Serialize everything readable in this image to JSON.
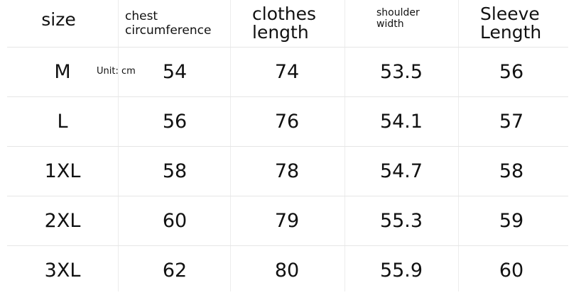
{
  "headers": {
    "size": "size",
    "chest": [
      "chest",
      "circumference"
    ],
    "clothes": [
      "clothes",
      "length"
    ],
    "shoulder": [
      "shoulder",
      "width"
    ],
    "sleeve": [
      "Sleeve",
      "Length"
    ]
  },
  "unit": "Unit: cm",
  "rows": [
    {
      "size": "M",
      "chest": "54",
      "length": "74",
      "shoulder": "53.5",
      "sleeve": "56"
    },
    {
      "size": "L",
      "chest": "56",
      "length": "76",
      "shoulder": "54.1",
      "sleeve": "57"
    },
    {
      "size": "1XL",
      "chest": "58",
      "length": "78",
      "shoulder": "54.7",
      "sleeve": "58"
    },
    {
      "size": "2XL",
      "chest": "60",
      "length": "79",
      "shoulder": "55.3",
      "sleeve": "59"
    },
    {
      "size": "3XL",
      "chest": "62",
      "length": "80",
      "shoulder": "55.9",
      "sleeve": "60"
    }
  ]
}
